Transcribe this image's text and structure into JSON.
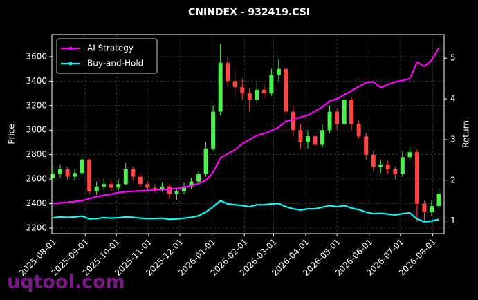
{
  "chart_data": {
    "type": "candlestick",
    "title": "CNINDEX - 932419.CSI",
    "ylabel": "Price",
    "y2label": "Return",
    "watermark": "uqtool.com",
    "x": [
      "2025-08-01",
      "2025-08-08",
      "2025-08-15",
      "2025-08-22",
      "2025-08-29",
      "2025-09-05",
      "2025-09-12",
      "2025-09-19",
      "2025-09-26",
      "2025-10-03",
      "2025-10-10",
      "2025-10-17",
      "2025-10-24",
      "2025-10-31",
      "2025-11-07",
      "2025-11-14",
      "2025-11-21",
      "2025-11-28",
      "2025-12-05",
      "2025-12-12",
      "2025-12-19",
      "2025-12-26",
      "2026-01-02",
      "2026-01-09",
      "2026-01-16",
      "2026-01-23",
      "2026-01-30",
      "2026-02-06",
      "2026-02-13",
      "2026-02-20",
      "2026-02-27",
      "2026-03-06",
      "2026-03-13",
      "2026-03-20",
      "2026-03-27",
      "2026-04-03",
      "2026-04-10",
      "2026-04-17",
      "2026-04-24",
      "2026-05-01",
      "2026-05-08",
      "2026-05-15",
      "2026-05-22",
      "2026-05-29",
      "2026-06-05",
      "2026-06-12",
      "2026-06-19",
      "2026-06-26",
      "2026-07-03",
      "2026-07-10",
      "2026-07-17",
      "2026-07-24",
      "2026-07-31",
      "2026-08-07"
    ],
    "ohlc": [
      [
        2610,
        2700,
        2580,
        2640
      ],
      [
        2640,
        2720,
        2610,
        2680
      ],
      [
        2680,
        2700,
        2590,
        2620
      ],
      [
        2620,
        2680,
        2590,
        2650
      ],
      [
        2650,
        2790,
        2630,
        2760
      ],
      [
        2760,
        2770,
        2470,
        2500
      ],
      [
        2500,
        2580,
        2470,
        2540
      ],
      [
        2540,
        2600,
        2510,
        2560
      ],
      [
        2560,
        2590,
        2500,
        2530
      ],
      [
        2530,
        2600,
        2510,
        2560
      ],
      [
        2560,
        2730,
        2550,
        2680
      ],
      [
        2680,
        2700,
        2590,
        2620
      ],
      [
        2620,
        2640,
        2530,
        2560
      ],
      [
        2560,
        2580,
        2500,
        2530
      ],
      [
        2530,
        2560,
        2490,
        2520
      ],
      [
        2520,
        2570,
        2500,
        2540
      ],
      [
        2540,
        2560,
        2440,
        2480
      ],
      [
        2480,
        2530,
        2430,
        2500
      ],
      [
        2500,
        2570,
        2480,
        2540
      ],
      [
        2540,
        2610,
        2520,
        2580
      ],
      [
        2580,
        2670,
        2560,
        2640
      ],
      [
        2640,
        2900,
        2620,
        2850
      ],
      [
        2850,
        3200,
        2830,
        3150
      ],
      [
        3150,
        3700,
        3120,
        3550
      ],
      [
        3550,
        3600,
        3350,
        3400
      ],
      [
        3400,
        3500,
        3280,
        3350
      ],
      [
        3350,
        3420,
        3250,
        3300
      ],
      [
        3300,
        3340,
        3150,
        3250
      ],
      [
        3250,
        3400,
        3220,
        3330
      ],
      [
        3330,
        3380,
        3260,
        3300
      ],
      [
        3300,
        3500,
        3280,
        3450
      ],
      [
        3450,
        3580,
        3400,
        3500
      ],
      [
        3500,
        3520,
        3100,
        3150
      ],
      [
        3150,
        3200,
        2950,
        3000
      ],
      [
        3000,
        3050,
        2850,
        2900
      ],
      [
        2900,
        3000,
        2850,
        2950
      ],
      [
        2950,
        2980,
        2840,
        2880
      ],
      [
        2880,
        3050,
        2860,
        3000
      ],
      [
        3000,
        3200,
        2980,
        3150
      ],
      [
        3150,
        3180,
        3000,
        3050
      ],
      [
        3050,
        3300,
        3030,
        3250
      ],
      [
        3250,
        3270,
        3000,
        3050
      ],
      [
        3050,
        3080,
        2930,
        2950
      ],
      [
        2950,
        2980,
        2760,
        2800
      ],
      [
        2800,
        2830,
        2660,
        2700
      ],
      [
        2700,
        2760,
        2650,
        2720
      ],
      [
        2720,
        2750,
        2640,
        2680
      ],
      [
        2680,
        2700,
        2600,
        2640
      ],
      [
        2640,
        2830,
        2620,
        2780
      ],
      [
        2780,
        2870,
        2750,
        2820
      ],
      [
        2820,
        2840,
        2250,
        2400
      ],
      [
        2400,
        2420,
        2260,
        2330
      ],
      [
        2330,
        2430,
        2300,
        2380
      ],
      [
        2380,
        2520,
        2360,
        2480
      ]
    ],
    "up_color": "#4ef04e",
    "down_color": "#ff4545",
    "series": [
      {
        "name": "AI Strategy",
        "color": "#ff00ff",
        "axis": "y2",
        "values": [
          1.43,
          1.45,
          1.46,
          1.48,
          1.5,
          1.55,
          1.6,
          1.63,
          1.66,
          1.7,
          1.72,
          1.73,
          1.74,
          1.75,
          1.76,
          1.77,
          1.78,
          1.8,
          1.83,
          1.87,
          1.92,
          2.0,
          2.2,
          2.55,
          2.65,
          2.75,
          2.9,
          3.0,
          3.1,
          3.15,
          3.22,
          3.3,
          3.45,
          3.5,
          3.55,
          3.6,
          3.7,
          3.8,
          3.95,
          4.0,
          4.1,
          4.2,
          4.3,
          4.4,
          4.42,
          4.28,
          4.35,
          4.42,
          4.45,
          4.5,
          4.9,
          4.8,
          4.95,
          5.25
        ]
      },
      {
        "name": "Buy-and-Hold",
        "color": "#00ffff",
        "axis": "y2",
        "values": [
          1.08,
          1.1,
          1.09,
          1.1,
          1.12,
          1.05,
          1.06,
          1.08,
          1.07,
          1.08,
          1.1,
          1.09,
          1.07,
          1.06,
          1.06,
          1.07,
          1.04,
          1.05,
          1.07,
          1.09,
          1.13,
          1.22,
          1.35,
          1.5,
          1.42,
          1.4,
          1.38,
          1.35,
          1.4,
          1.4,
          1.42,
          1.43,
          1.35,
          1.3,
          1.27,
          1.3,
          1.3,
          1.34,
          1.38,
          1.35,
          1.38,
          1.32,
          1.28,
          1.22,
          1.18,
          1.19,
          1.17,
          1.15,
          1.18,
          1.2,
          1.05,
          0.98,
          1.0,
          1.04
        ]
      }
    ],
    "xlim": [
      "2025-07-31",
      "2026-08-12"
    ],
    "xticks": [
      "2025-08-01",
      "2025-09-01",
      "2025-10-01",
      "2025-11-01",
      "2025-12-01",
      "2026-01-01",
      "2026-02-01",
      "2026-03-01",
      "2026-04-01",
      "2026-05-01",
      "2026-06-01",
      "2026-07-01",
      "2026-08-01"
    ],
    "ylim": [
      2155,
      3780
    ],
    "yticks": [
      2200,
      2400,
      2600,
      2800,
      3000,
      3200,
      3400,
      3600
    ],
    "y2lim": [
      0.69,
      5.58
    ],
    "y2ticks": [
      1,
      2,
      3,
      4,
      5
    ],
    "grid": true,
    "legend": "upper left"
  }
}
